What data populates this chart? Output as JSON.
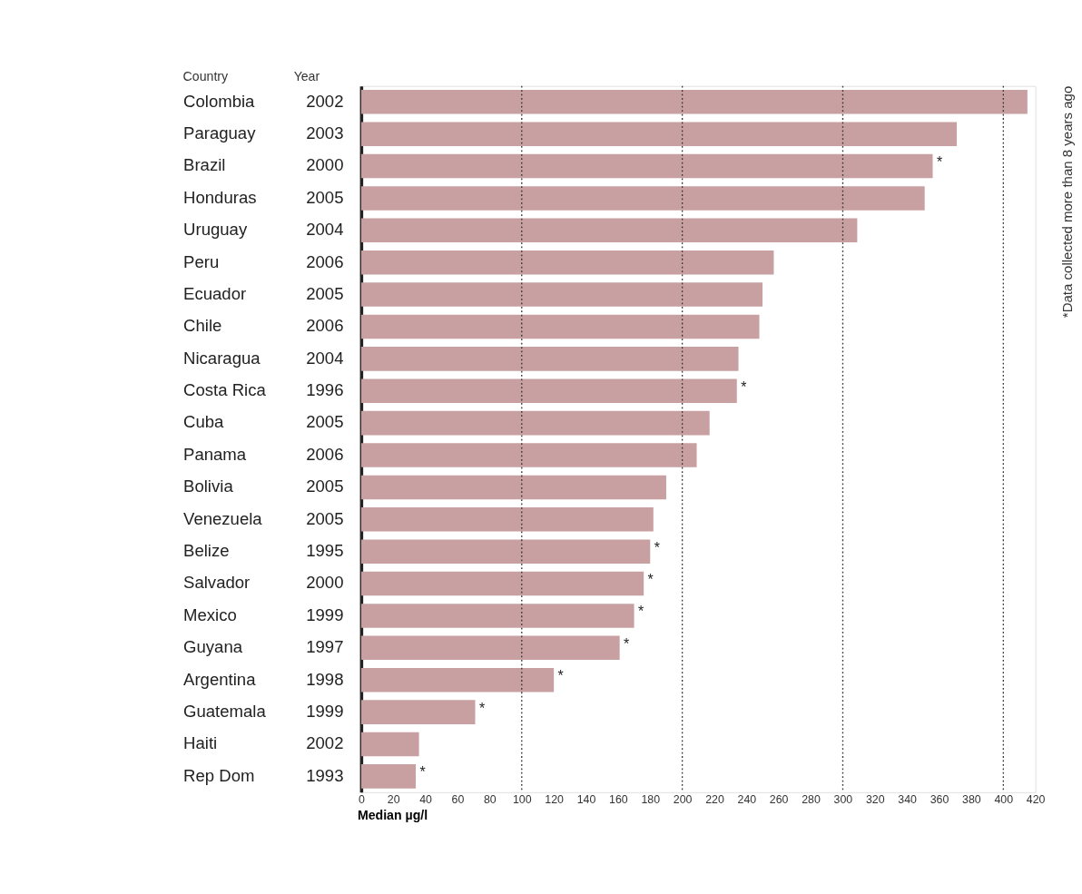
{
  "chart_data": {
    "type": "bar",
    "orientation": "horizontal",
    "categories": [
      "Colombia",
      "Paraguay",
      "Brazil",
      "Honduras",
      "Uruguay",
      "Peru",
      "Ecuador",
      "Chile",
      "Nicaragua",
      "Costa Rica",
      "Cuba",
      "Panama",
      "Bolivia",
      "Venezuela",
      "Belize",
      "Salvador",
      "Mexico",
      "Guyana",
      "Argentina",
      "Guatemala",
      "Haiti",
      "Rep Dom"
    ],
    "y2_categories": [
      "2002",
      "2003",
      "2000",
      "2005",
      "2004",
      "2006",
      "2005",
      "2006",
      "2004",
      "1996",
      "2005",
      "2006",
      "2005",
      "2005",
      "1995",
      "2000",
      "1999",
      "1997",
      "1998",
      "1999",
      "2002",
      "1993"
    ],
    "values": [
      415,
      371,
      356,
      351,
      309,
      257,
      250,
      248,
      235,
      234,
      217,
      209,
      190,
      182,
      180,
      176,
      170,
      161,
      120,
      71,
      36,
      34
    ],
    "value_labels": [
      null,
      null,
      "*",
      null,
      null,
      null,
      null,
      null,
      null,
      "*",
      null,
      null,
      null,
      null,
      "*",
      "*",
      "*",
      "*",
      "*",
      "*",
      null,
      "*"
    ],
    "color": "#c9a0a2",
    "xlabel": "Median µg/l",
    "xlim": [
      0,
      420
    ],
    "xticks": [
      0,
      20,
      40,
      60,
      80,
      100,
      120,
      140,
      160,
      180,
      200,
      220,
      240,
      260,
      280,
      300,
      320,
      340,
      360,
      380,
      400,
      420
    ],
    "grid": false,
    "ref_lines": [
      {
        "axis": "x",
        "value": 100,
        "line_style": "dotted",
        "color": "#333333"
      },
      {
        "axis": "x",
        "value": 200,
        "line_style": "dotted",
        "color": "#333333"
      },
      {
        "axis": "x",
        "value": 300,
        "line_style": "dotted",
        "color": "#333333"
      },
      {
        "axis": "x",
        "value": 400,
        "line_style": "dotted",
        "color": "#333333"
      }
    ],
    "annotations": [
      "Country",
      "Year",
      "*Data collected more than 8 years ago"
    ]
  }
}
